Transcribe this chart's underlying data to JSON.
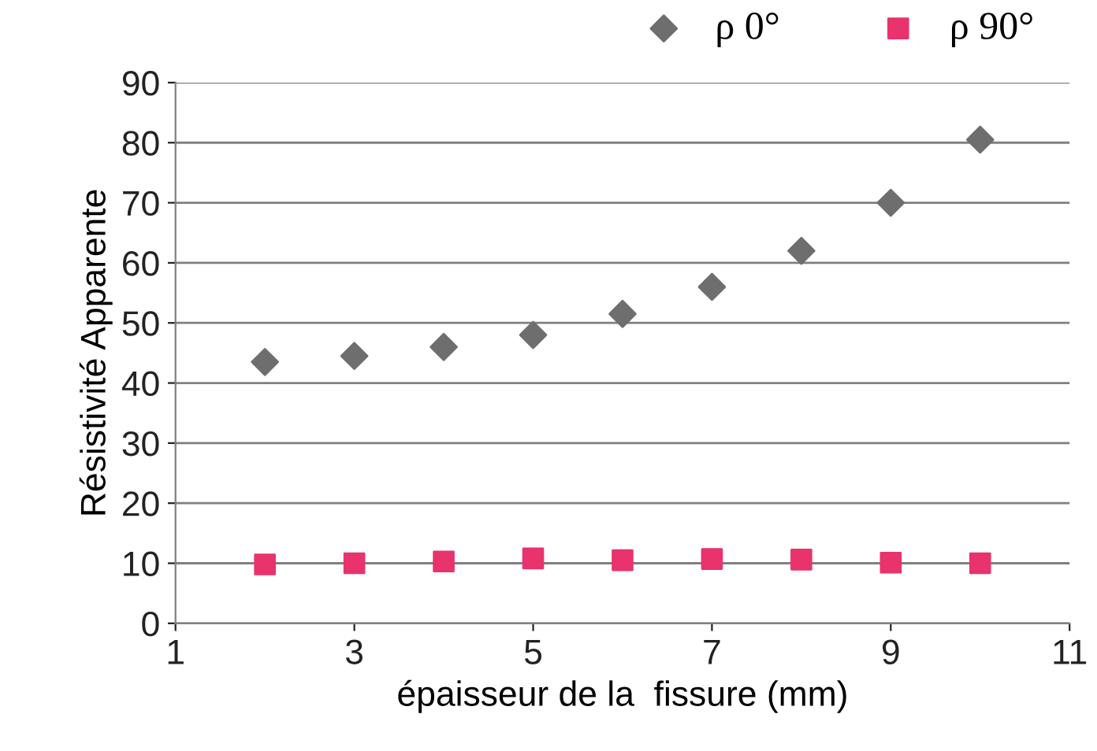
{
  "chart_data": {
    "type": "scatter",
    "xlabel": "épaisseur de la  fissure (mm)",
    "ylabel": "Résistivité Apparente",
    "x": [
      2,
      3,
      4,
      5,
      6,
      7,
      8,
      9,
      10
    ],
    "series": [
      {
        "name": "ρ 0°",
        "color": "#6e6e6e",
        "marker": "diamond",
        "values": [
          43.5,
          44.5,
          46,
          48,
          51.5,
          56,
          62,
          70,
          80.5
        ]
      },
      {
        "name": "ρ 90°",
        "color": "#e8336d",
        "marker": "square",
        "values": [
          9.8,
          10,
          10.3,
          10.8,
          10.5,
          10.7,
          10.6,
          10.1,
          10
        ]
      }
    ],
    "xlim": [
      1,
      11
    ],
    "xticks": [
      1,
      3,
      5,
      7,
      9,
      11
    ],
    "ylim": [
      0,
      90
    ],
    "yticks": [
      0,
      10,
      20,
      30,
      40,
      50,
      60,
      70,
      80,
      90
    ],
    "grid": "y",
    "legend": "top right"
  }
}
